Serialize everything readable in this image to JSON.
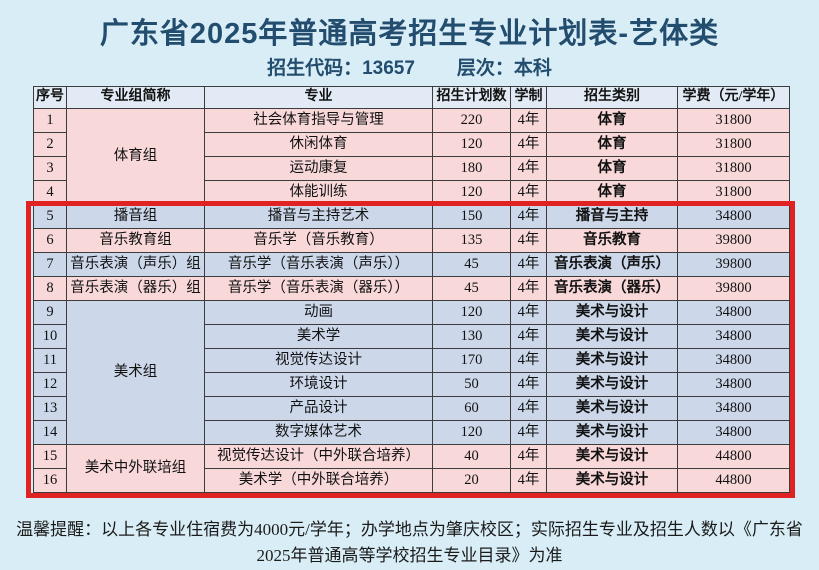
{
  "page": {
    "title": "广东省2025年普通高考招生专业计划表-艺体类",
    "subtitle_code": "招生代码：13657",
    "subtitle_level": "层次：本科"
  },
  "table": {
    "headers": [
      "序号",
      "专业组简称",
      "专业",
      "招生计划数",
      "学制",
      "招生类别",
      "学费（元/学年）"
    ],
    "rows": [
      {
        "no": "1",
        "group": {
          "label": "体育组",
          "span": 4
        },
        "major": "社会体育指导与管理",
        "plan": "220",
        "duration": "4年",
        "category": "体育",
        "category_color": "blue",
        "tuition": "31800",
        "bg": "pink"
      },
      {
        "no": "2",
        "major": "休闲体育",
        "plan": "120",
        "duration": "4年",
        "category": "体育",
        "category_color": "blue",
        "tuition": "31800",
        "bg": "pink"
      },
      {
        "no": "3",
        "major": "运动康复",
        "plan": "180",
        "duration": "4年",
        "category": "体育",
        "category_color": "blue",
        "tuition": "31800",
        "bg": "pink"
      },
      {
        "no": "4",
        "major": "体能训练",
        "plan": "120",
        "duration": "4年",
        "category": "体育",
        "category_color": "blue",
        "tuition": "31800",
        "bg": "pink"
      },
      {
        "no": "5",
        "group": {
          "label": "播音组",
          "span": 1
        },
        "major": "播音与主持艺术",
        "plan": "150",
        "duration": "4年",
        "category": "播音与主持",
        "category_color": "teal",
        "tuition": "34800",
        "bg": "blue"
      },
      {
        "no": "6",
        "group": {
          "label": "音乐教育组",
          "span": 1
        },
        "major": "音乐学（音乐教育）",
        "plan": "135",
        "duration": "4年",
        "category": "音乐教育",
        "category_color": "red",
        "tuition": "39800",
        "bg": "pink"
      },
      {
        "no": "7",
        "group": {
          "label": "音乐表演（声乐）组",
          "span": 1
        },
        "major": "音乐学（音乐表演（声乐））",
        "plan": "45",
        "duration": "4年",
        "category": "音乐表演（声乐）",
        "category_color": "red",
        "tuition": "39800",
        "bg": "blue"
      },
      {
        "no": "8",
        "group": {
          "label": "音乐表演（器乐）组",
          "span": 1
        },
        "major": "音乐学（音乐表演（器乐））",
        "plan": "45",
        "duration": "4年",
        "category": "音乐表演（器乐）",
        "category_color": "red",
        "tuition": "39800",
        "bg": "pink"
      },
      {
        "no": "9",
        "group": {
          "label": "美术组",
          "span": 6
        },
        "major": "动画",
        "plan": "120",
        "duration": "4年",
        "category": "美术与设计",
        "category_color": "blue",
        "tuition": "34800",
        "bg": "blue"
      },
      {
        "no": "10",
        "major": "美术学",
        "plan": "130",
        "duration": "4年",
        "category": "美术与设计",
        "category_color": "blue",
        "tuition": "34800",
        "bg": "blue"
      },
      {
        "no": "11",
        "major": "视觉传达设计",
        "plan": "170",
        "duration": "4年",
        "category": "美术与设计",
        "category_color": "blue",
        "tuition": "34800",
        "bg": "blue"
      },
      {
        "no": "12",
        "major": "环境设计",
        "plan": "50",
        "duration": "4年",
        "category": "美术与设计",
        "category_color": "blue",
        "tuition": "34800",
        "bg": "blue"
      },
      {
        "no": "13",
        "major": "产品设计",
        "plan": "60",
        "duration": "4年",
        "category": "美术与设计",
        "category_color": "blue",
        "tuition": "34800",
        "bg": "blue"
      },
      {
        "no": "14",
        "major": "数字媒体艺术",
        "plan": "120",
        "duration": "4年",
        "category": "美术与设计",
        "category_color": "blue",
        "tuition": "34800",
        "bg": "blue"
      },
      {
        "no": "15",
        "group": {
          "label": "美术中外联培组",
          "span": 2
        },
        "major": "视觉传达设计（中外联合培养）",
        "plan": "40",
        "duration": "4年",
        "category": "美术与设计",
        "category_color": "blue",
        "tuition": "44800",
        "bg": "pink"
      },
      {
        "no": "16",
        "major": "美术学（中外联合培养）",
        "plan": "20",
        "duration": "4年",
        "category": "美术与设计",
        "category_color": "blue",
        "tuition": "44800",
        "bg": "pink"
      }
    ]
  },
  "highlight": {
    "border_color": "#e02222"
  },
  "colors": {
    "page_background": "#d8edf6",
    "title_text": "#234d6e",
    "row_pink": "#f9d8d9",
    "row_blue": "#ccd8ea",
    "header_row": "#e2ebf5",
    "category_blue": "#4470b5",
    "category_teal": "#2e9d8e",
    "category_red": "#cb1616"
  },
  "footer": {
    "line1": "温馨提醒：以上各专业住宿费为4000元/学年；办学地点为肇庆校区；实际招生专业及招生人数以《广东省",
    "line2": "2025年普通高等学校招生专业目录》为准"
  }
}
